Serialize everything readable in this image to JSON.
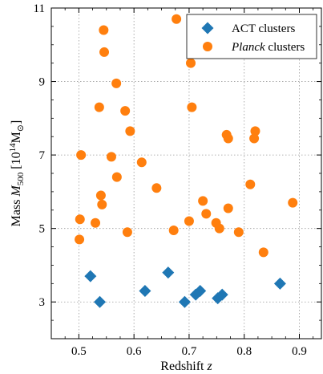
{
  "chart_data": {
    "type": "scatter",
    "xlabel_parts": [
      "Redshift ",
      "z"
    ],
    "ylabel_parts": [
      "Mass ",
      "M",
      "500",
      " [10",
      "14",
      "M",
      "⊙",
      "]"
    ],
    "xlim": [
      0.45,
      0.94
    ],
    "ylim": [
      2.0,
      11.0
    ],
    "xticks": [
      0.5,
      0.6,
      0.7,
      0.8,
      0.9
    ],
    "xtick_labels": [
      "0.5",
      "0.6",
      "0.7",
      "0.8",
      "0.9"
    ],
    "yticks": [
      3,
      5,
      7,
      9,
      11
    ],
    "ytick_labels": [
      "3",
      "5",
      "7",
      "9",
      "11"
    ],
    "grid": true,
    "legend_position": "top-right",
    "series": [
      {
        "name": "ACT clusters",
        "marker": "diamond",
        "color": "#1f77b4",
        "points": [
          [
            0.521,
            3.7
          ],
          [
            0.538,
            3.0
          ],
          [
            0.62,
            3.3
          ],
          [
            0.662,
            3.8
          ],
          [
            0.692,
            3.0
          ],
          [
            0.712,
            3.2
          ],
          [
            0.72,
            3.3
          ],
          [
            0.752,
            3.1
          ],
          [
            0.76,
            3.2
          ],
          [
            0.865,
            3.5
          ]
        ]
      },
      {
        "name": "Planck clusters",
        "name_style": "italic",
        "marker": "circle",
        "color": "#ff7f0e",
        "points": [
          [
            0.545,
            10.4
          ],
          [
            0.677,
            10.7
          ],
          [
            0.546,
            9.8
          ],
          [
            0.703,
            9.5
          ],
          [
            0.568,
            8.95
          ],
          [
            0.537,
            8.3
          ],
          [
            0.584,
            8.2
          ],
          [
            0.705,
            8.3
          ],
          [
            0.593,
            7.65
          ],
          [
            0.768,
            7.55
          ],
          [
            0.82,
            7.65
          ],
          [
            0.771,
            7.45
          ],
          [
            0.818,
            7.45
          ],
          [
            0.504,
            7.0
          ],
          [
            0.559,
            6.95
          ],
          [
            0.614,
            6.8
          ],
          [
            0.569,
            6.4
          ],
          [
            0.641,
            6.1
          ],
          [
            0.54,
            5.9
          ],
          [
            0.811,
            6.2
          ],
          [
            0.542,
            5.65
          ],
          [
            0.725,
            5.75
          ],
          [
            0.888,
            5.7
          ],
          [
            0.771,
            5.55
          ],
          [
            0.731,
            5.4
          ],
          [
            0.502,
            5.25
          ],
          [
            0.53,
            5.15
          ],
          [
            0.7,
            5.2
          ],
          [
            0.749,
            5.15
          ],
          [
            0.672,
            4.95
          ],
          [
            0.755,
            5.0
          ],
          [
            0.588,
            4.9
          ],
          [
            0.79,
            4.9
          ],
          [
            0.501,
            4.7
          ],
          [
            0.835,
            4.35
          ]
        ]
      }
    ]
  }
}
